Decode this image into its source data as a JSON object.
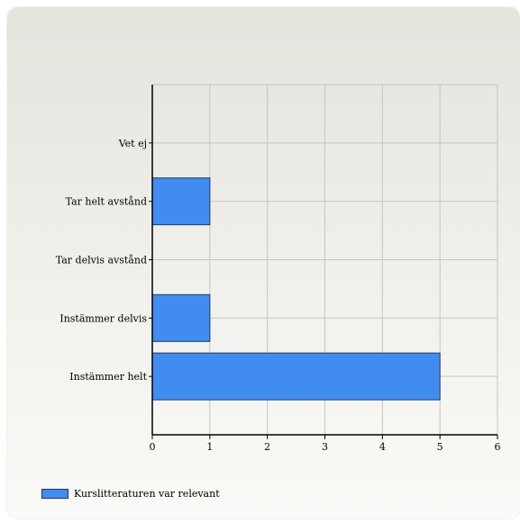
{
  "chart_data": {
    "type": "bar",
    "orientation": "horizontal",
    "categories": [
      "Vet ej",
      "Tar helt avstånd",
      "Tar delvis avstånd",
      "Instämmer delvis",
      "Instämmer helt"
    ],
    "series": [
      {
        "name": "Kurslitteraturen var relevant",
        "values": [
          0,
          1,
          0,
          1,
          5
        ],
        "color": "#418cf0"
      }
    ],
    "xlim": [
      0,
      6
    ],
    "xticks": [
      0,
      1,
      2,
      3,
      4,
      5,
      6
    ],
    "grid": true,
    "legend": "bottom-left"
  }
}
